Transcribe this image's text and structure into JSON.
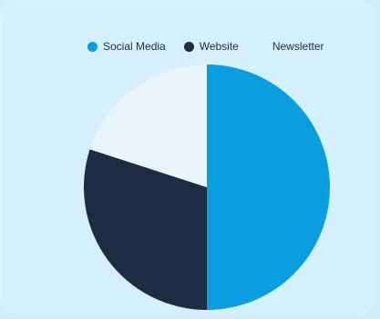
{
  "chart_data": {
    "type": "pie",
    "title": "",
    "slices": [
      {
        "label": "Social Media",
        "value": 50,
        "color": "#0a9ddf"
      },
      {
        "label": "Website",
        "value": 30,
        "color": "#1f2b45"
      },
      {
        "label": "Newsletter",
        "value": 20,
        "color": "#e9f4fa"
      }
    ],
    "legend_position": "top"
  },
  "legend": {
    "items": [
      {
        "label": "Social Media",
        "color": "#0a9ddf"
      },
      {
        "label": "Website",
        "color": "#1f2b45"
      },
      {
        "label": "Newsletter",
        "color": "#e9f4fa"
      }
    ]
  }
}
